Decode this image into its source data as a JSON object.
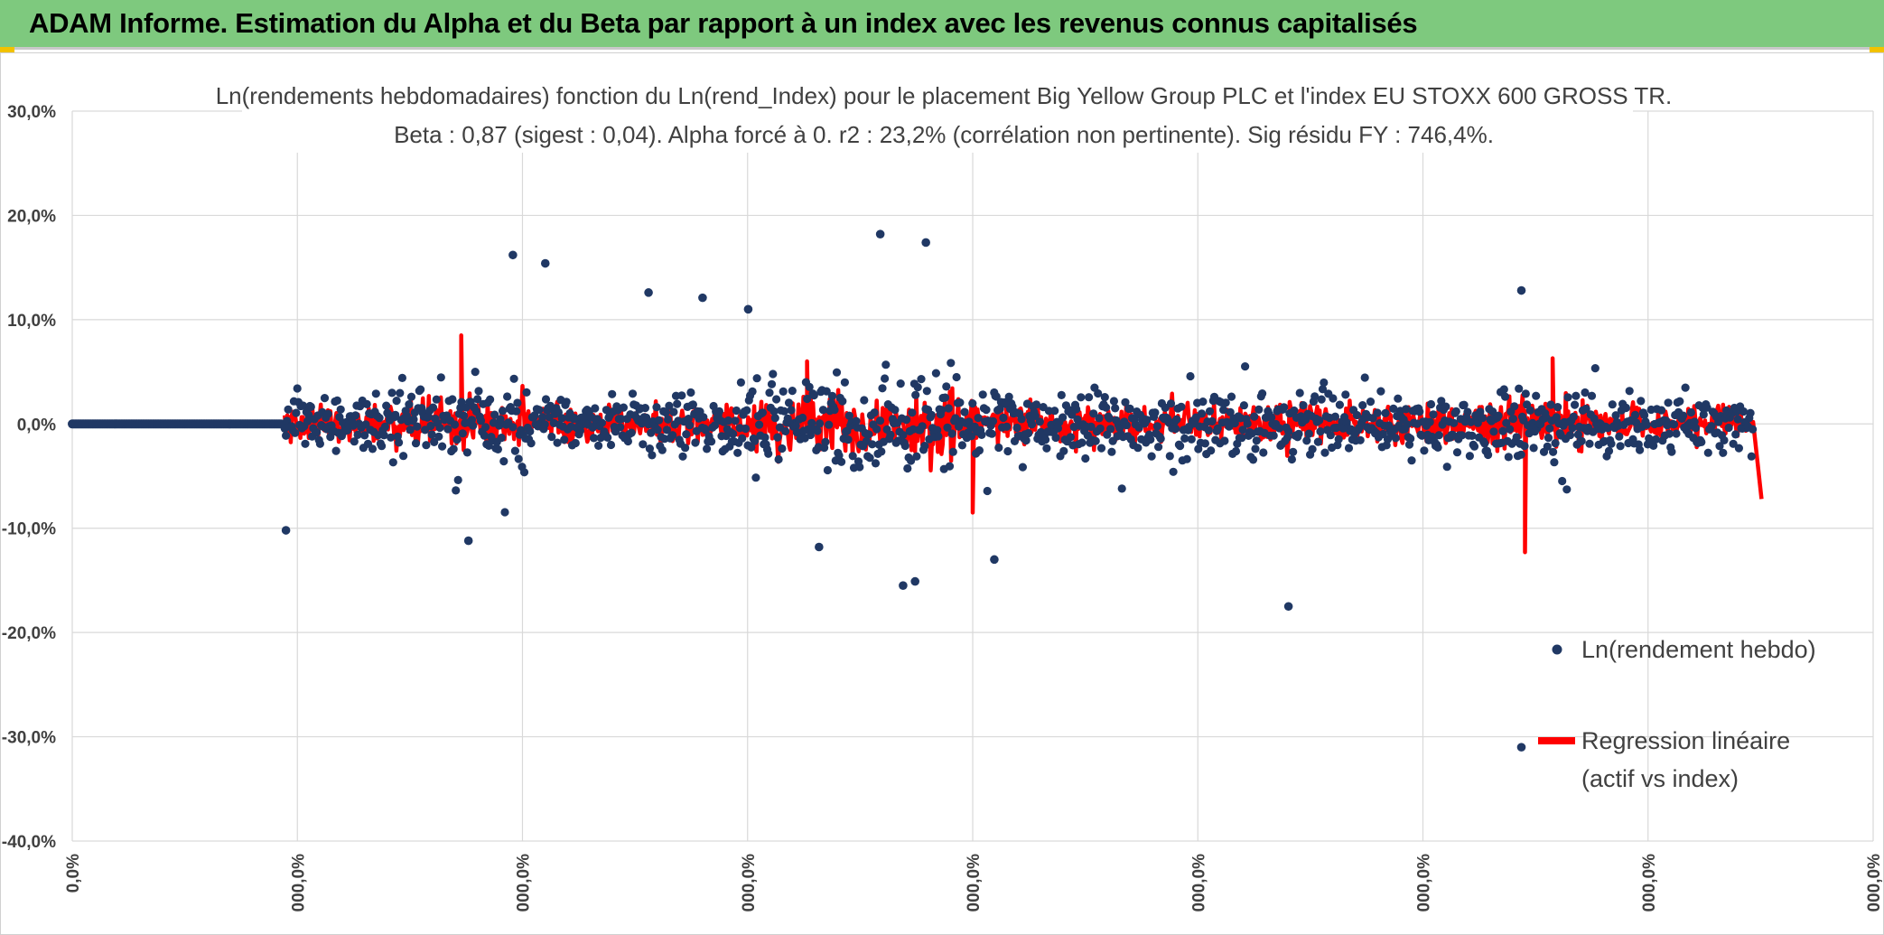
{
  "header": {
    "title": "ADAM Informe. Estimation du Alpha et du Beta par rapport à un index avec les revenus connus capitalisés"
  },
  "colors": {
    "banner": "#7ec97e",
    "points": "#203864",
    "regression": "#ff0000",
    "grid": "#d9d9d9",
    "text": "#404040"
  },
  "chart_data": {
    "type": "scatter",
    "title": "Ln(rendements hebdomadaires) fonction du Ln(rend_Index) pour le placement Big Yellow Group PLC et l'index EU STOXX 600 GROSS TR.",
    "subtitle": "Beta : 0,87 (sigest : 0,04). Alpha forcé à 0. r2 : 23,2% (corrélation non pertinente). Sig résidu FY : 746,4%.",
    "y_ticks": [
      "30,0%",
      "20,0%",
      "10,0%",
      "0,0%",
      "-10,0%",
      "-20,0%",
      "-30,0%",
      "-40,0%"
    ],
    "y_values": [
      30,
      20,
      10,
      0,
      -10,
      -20,
      -30,
      -40
    ],
    "ylim": [
      -40,
      30
    ],
    "x_ticks": [
      "0,0%",
      "000,0%",
      "000,0%",
      "000,0%",
      "000,0%",
      "000,0%",
      "000,0%",
      "000,0%",
      "000,0%"
    ],
    "grid": true,
    "legend_position": "bottom-right",
    "series": [
      {
        "name": "Ln(rendement hebdo)",
        "kind": "points",
        "x_range": [
          0,
          1500
        ],
        "zero_run_end": 175,
        "notable_points": [
          {
            "x": 178,
            "y": -10.2
          },
          {
            "x": 330,
            "y": -11.2
          },
          {
            "x": 367,
            "y": 16.2
          },
          {
            "x": 394,
            "y": 15.4
          },
          {
            "x": 480,
            "y": 12.6
          },
          {
            "x": 525,
            "y": 12.1
          },
          {
            "x": 563,
            "y": 11.0
          },
          {
            "x": 622,
            "y": -11.8
          },
          {
            "x": 673,
            "y": 18.2
          },
          {
            "x": 692,
            "y": -15.5
          },
          {
            "x": 702,
            "y": -15.1
          },
          {
            "x": 711,
            "y": 17.4
          },
          {
            "x": 768,
            "y": -13.0
          },
          {
            "x": 1013,
            "y": -17.5
          },
          {
            "x": 1207,
            "y": 12.8
          },
          {
            "x": 1207,
            "y": -31.0
          }
        ]
      },
      {
        "name": "Regression linéaire",
        "name_line2": "(actif vs index)",
        "kind": "line",
        "notable_spikes": [
          {
            "x": 324,
            "y": 8.5
          },
          {
            "x": 612,
            "y": 6.0
          },
          {
            "x": 750,
            "y": -8.5
          },
          {
            "x": 1210,
            "y": -12.3
          },
          {
            "x": 1233,
            "y": 6.3
          },
          {
            "x": 1407,
            "y": -7.2
          }
        ]
      }
    ]
  }
}
